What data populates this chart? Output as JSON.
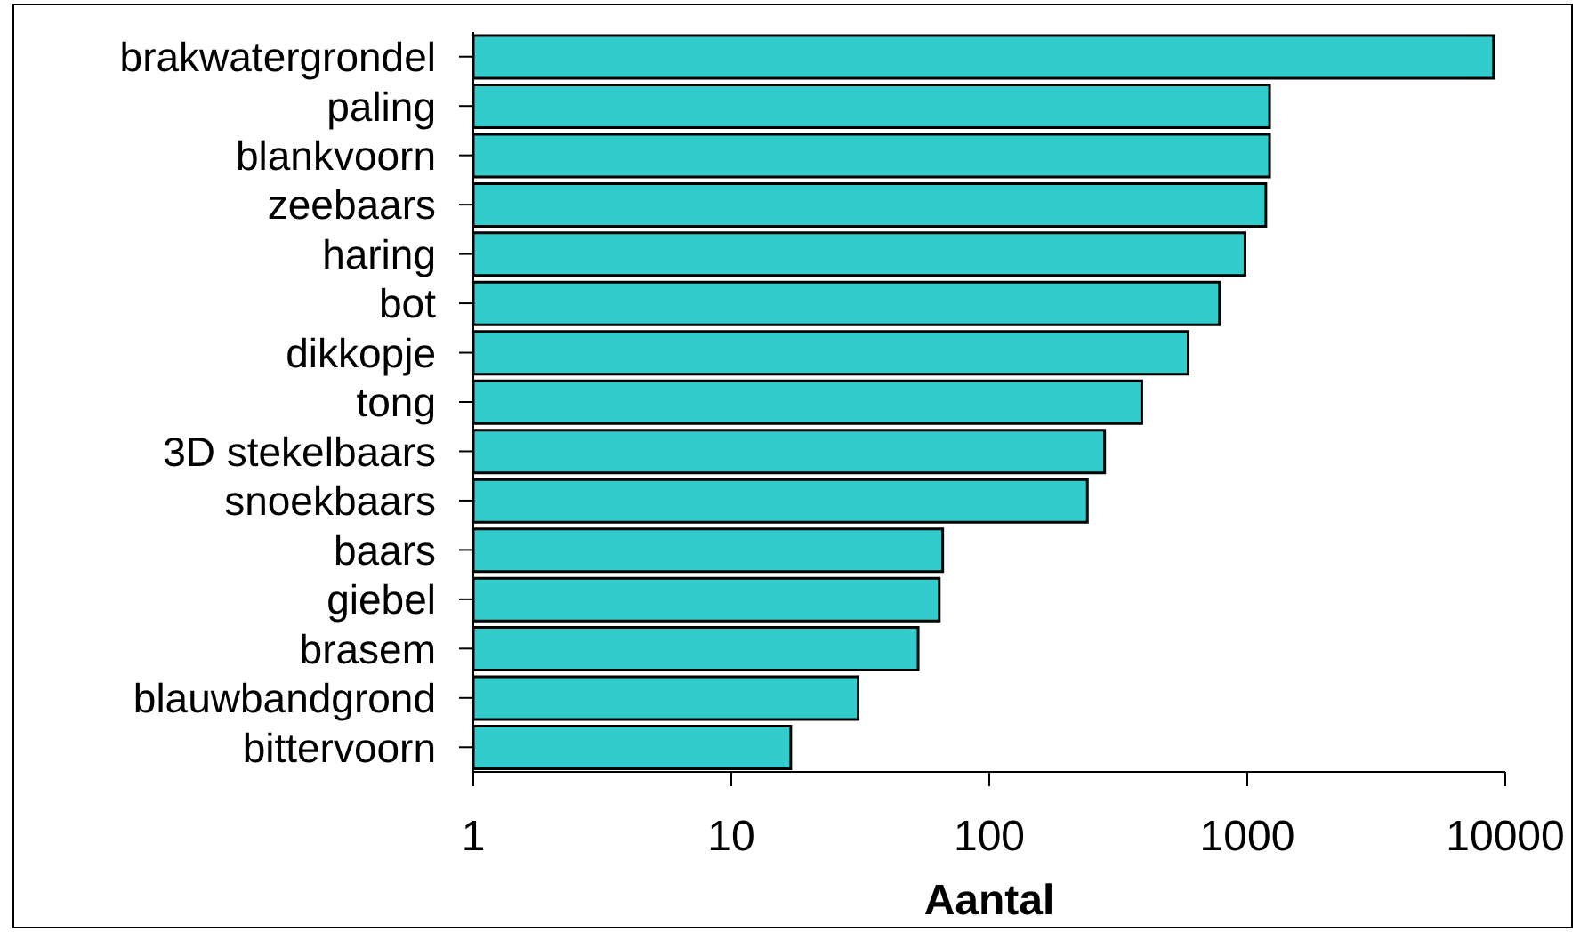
{
  "chart_data": {
    "type": "bar",
    "orientation": "horizontal",
    "log": "x",
    "xlabel": "Aantal",
    "categories": [
      "brakwatergrondel",
      "paling",
      "blankvoorn",
      "zeebaars",
      "haring",
      "bot",
      "dikkopje",
      "tong",
      "3D stekelbaars",
      "snoekbaars",
      "baars",
      "giebel",
      "brasem",
      "blauwbandgrond",
      "bittervoorn"
    ],
    "values": [
      9000,
      1220,
      1220,
      1180,
      980,
      780,
      590,
      390,
      280,
      240,
      66,
      64,
      53,
      31,
      17
    ],
    "color": "#33cccc",
    "xlim": [
      1,
      10000
    ],
    "xticks": [
      1,
      10,
      100,
      1000,
      10000
    ]
  }
}
